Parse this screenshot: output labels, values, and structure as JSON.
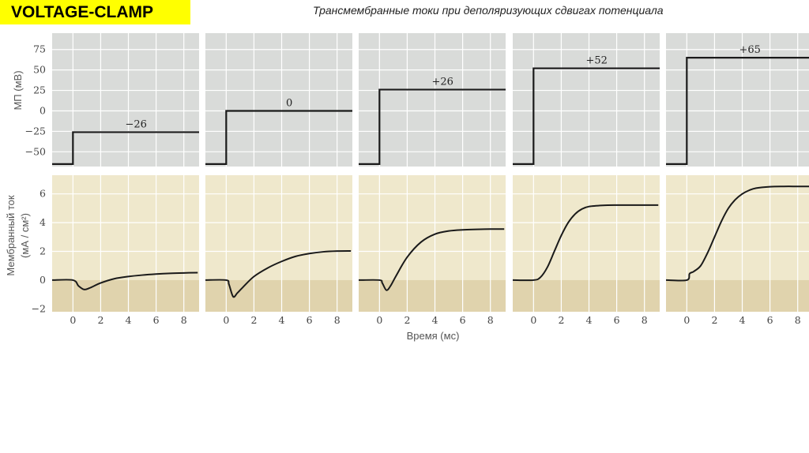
{
  "header": {
    "badge": "VOLTAGE-CLAMP",
    "subtitle": "Трансмембранные токи при деполяризующих сдвигах потенциала"
  },
  "colors": {
    "top_panel_bg": "#d9dbd9",
    "bottom_panel_bg": "#efe8cc",
    "negative_band": "#e0d3ad",
    "trace": "#1a1a1a",
    "badge_bg": "#ffff00"
  },
  "chart_data": [
    {
      "type": "line",
      "ylabel": "МП (мВ)",
      "ylim": [
        -68,
        95
      ],
      "y_ticks": [
        75,
        50,
        25,
        0,
        -25,
        -50
      ],
      "y_tick_labels": [
        "75",
        "50",
        "25",
        "0",
        "−25",
        "−50"
      ],
      "grid": true,
      "panels": [
        {
          "step_label": "−26",
          "holding": -65,
          "step": -26,
          "step_time": 0
        },
        {
          "step_label": "0",
          "holding": -65,
          "step": 0,
          "step_time": 0
        },
        {
          "step_label": "+26",
          "holding": -65,
          "step": 26,
          "step_time": 0
        },
        {
          "step_label": "+52",
          "holding": -65,
          "step": 52,
          "step_time": 0
        },
        {
          "step_label": "+65",
          "holding": -65,
          "step": 65,
          "step_time": 0
        }
      ]
    },
    {
      "type": "line",
      "ylabel_line1": "Мембранный ток",
      "ylabel_line2": "(мА / см²)",
      "xlabel": "Время (мс)",
      "x_ticks": [
        0,
        2,
        4,
        6,
        8
      ],
      "x_tick_labels": [
        "0",
        "2",
        "4",
        "6",
        "8"
      ],
      "xlim": [
        -1.5,
        9.1
      ],
      "y_ticks": [
        6,
        4,
        2,
        0,
        -2
      ],
      "y_tick_labels": [
        "6",
        "4",
        "2",
        "0",
        "−2"
      ],
      "ylim": [
        -2.2,
        7.3
      ],
      "grid": true,
      "series": [
        {
          "x": [
            -1.5,
            0,
            0.4,
            0.8,
            1.2,
            2,
            3,
            4,
            5,
            6,
            7,
            8,
            9
          ],
          "y": [
            0,
            0,
            -0.4,
            -0.65,
            -0.55,
            -0.2,
            0.1,
            0.25,
            0.35,
            0.42,
            0.47,
            0.5,
            0.52
          ]
        },
        {
          "x": [
            -1.5,
            0,
            0.2,
            0.5,
            0.8,
            1.2,
            2,
            3,
            4,
            5,
            6,
            7,
            8,
            9
          ],
          "y": [
            0,
            0,
            -0.3,
            -1.15,
            -0.9,
            -0.5,
            0.25,
            0.85,
            1.3,
            1.65,
            1.85,
            1.97,
            2.02,
            2.03
          ]
        },
        {
          "x": [
            -1.5,
            0,
            0.2,
            0.5,
            0.8,
            1.2,
            2,
            3,
            4,
            5,
            6,
            7,
            8,
            9
          ],
          "y": [
            0,
            0,
            -0.2,
            -0.7,
            -0.4,
            0.3,
            1.6,
            2.65,
            3.2,
            3.42,
            3.5,
            3.53,
            3.55,
            3.55
          ]
        },
        {
          "x": [
            -1.5,
            0,
            0.5,
            1,
            1.5,
            2,
            2.5,
            3,
            3.5,
            4,
            5,
            6,
            7,
            8,
            9
          ],
          "y": [
            0,
            0,
            0.2,
            0.9,
            2.0,
            3.1,
            4.0,
            4.6,
            4.95,
            5.12,
            5.2,
            5.22,
            5.22,
            5.22,
            5.22
          ]
        },
        {
          "x": [
            -1.5,
            0,
            0.2,
            0.5,
            1,
            1.5,
            2,
            2.5,
            3,
            3.5,
            4,
            4.5,
            5,
            6,
            7,
            8,
            9
          ],
          "y": [
            0,
            0,
            0.45,
            0.6,
            1.0,
            1.9,
            3.0,
            4.1,
            5.0,
            5.6,
            6.0,
            6.25,
            6.4,
            6.5,
            6.52,
            6.52,
            6.52
          ]
        }
      ]
    }
  ]
}
